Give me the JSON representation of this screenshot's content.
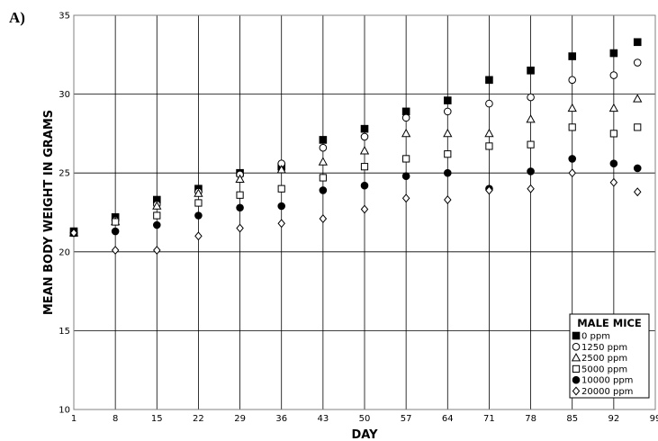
{
  "panel_label": "A)",
  "chart_data": {
    "type": "scatter",
    "title": "",
    "xlabel": "DAY",
    "ylabel": "MEAN BODY WEIGHT IN GRAMS",
    "xlim": [
      1,
      99
    ],
    "ylim": [
      10,
      35
    ],
    "xticks": [
      "1",
      "8",
      "15",
      "22",
      "29",
      "36",
      "43",
      "50",
      "57",
      "64",
      "71",
      "78",
      "85",
      "92",
      "99"
    ],
    "yticks": [
      "10",
      "15",
      "20",
      "25",
      "30",
      "35"
    ],
    "grid": true,
    "legend_title": "MALE MICE",
    "legend_position": "bottom-right",
    "series": [
      {
        "name": "0 ppm",
        "marker": "filled-square",
        "x": [
          1,
          8,
          15,
          22,
          29,
          36,
          43,
          50,
          57,
          64,
          71,
          78,
          85,
          92,
          96
        ],
        "y": [
          21.3,
          22.2,
          23.3,
          24.0,
          25.0,
          25.4,
          27.1,
          27.8,
          28.9,
          29.6,
          30.9,
          31.5,
          32.4,
          32.6,
          33.3
        ]
      },
      {
        "name": "1250 ppm",
        "marker": "open-circle",
        "x": [
          1,
          8,
          15,
          22,
          29,
          36,
          43,
          50,
          57,
          64,
          71,
          78,
          85,
          92,
          96
        ],
        "y": [
          21.2,
          22.0,
          23.0,
          23.8,
          24.9,
          25.6,
          26.6,
          27.3,
          28.5,
          28.9,
          29.4,
          29.8,
          30.9,
          31.2,
          32.0
        ]
      },
      {
        "name": "2500 ppm",
        "marker": "open-triangle",
        "x": [
          1,
          8,
          15,
          22,
          29,
          36,
          43,
          50,
          57,
          64,
          71,
          78,
          85,
          92,
          96
        ],
        "y": [
          21.2,
          21.9,
          22.9,
          23.7,
          24.6,
          25.2,
          25.7,
          26.4,
          27.5,
          27.5,
          27.5,
          28.4,
          29.1,
          29.1,
          29.7
        ]
      },
      {
        "name": "5000 ppm",
        "marker": "open-square",
        "x": [
          1,
          8,
          15,
          22,
          29,
          36,
          43,
          50,
          57,
          64,
          71,
          78,
          85,
          92,
          96
        ],
        "y": [
          21.2,
          21.9,
          22.3,
          23.1,
          23.6,
          24.0,
          24.7,
          25.4,
          25.9,
          26.2,
          26.7,
          26.8,
          27.9,
          27.5,
          27.9
        ]
      },
      {
        "name": "10000 ppm",
        "marker": "filled-circle",
        "x": [
          1,
          8,
          15,
          22,
          29,
          36,
          43,
          50,
          57,
          64,
          71,
          78,
          85,
          92,
          96
        ],
        "y": [
          21.2,
          21.3,
          21.7,
          22.3,
          22.8,
          22.9,
          23.9,
          24.2,
          24.8,
          25.0,
          24.0,
          25.1,
          25.9,
          25.6,
          25.3
        ]
      },
      {
        "name": "20000 ppm",
        "marker": "open-diamond",
        "x": [
          1,
          8,
          15,
          22,
          29,
          36,
          43,
          50,
          57,
          64,
          71,
          78,
          85,
          92,
          96
        ],
        "y": [
          21.2,
          20.1,
          20.1,
          21.0,
          21.5,
          21.8,
          22.1,
          22.7,
          23.4,
          23.3,
          23.9,
          24.0,
          25.0,
          24.4,
          23.8
        ]
      }
    ]
  }
}
